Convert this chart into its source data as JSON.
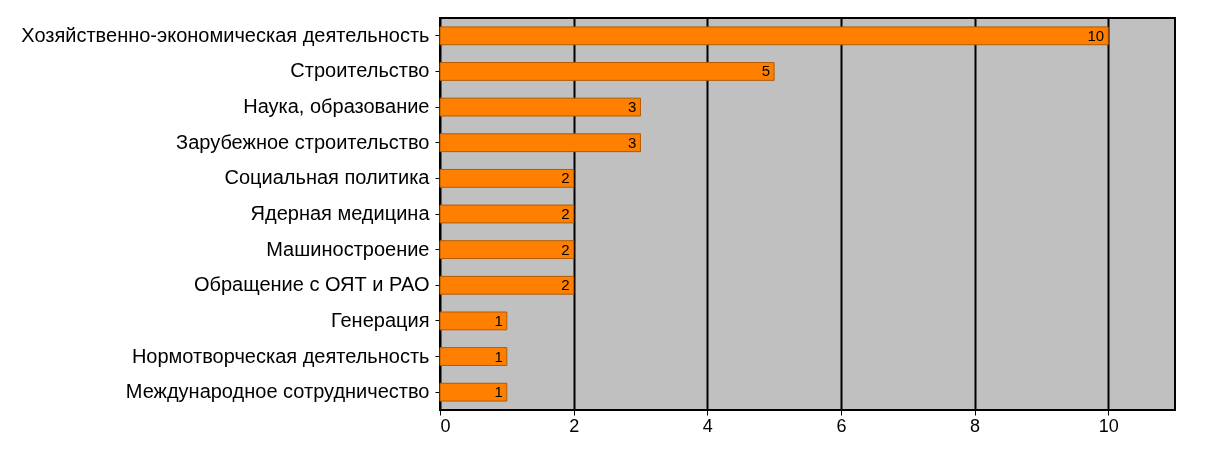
{
  "chart_data": {
    "type": "bar",
    "orientation": "horizontal",
    "categories": [
      "Хозяйственно-экономическая деятельность",
      "Строительство",
      "Наука, образование",
      "Зарубежное строительство",
      "Социальная политика",
      "Ядерная медицина",
      "Машиностроение",
      "Обращение с ОЯТ и РАО",
      "Генерация",
      "Нормотворческая деятельность",
      "Международное сотрудничество"
    ],
    "values": [
      10,
      5,
      3,
      3,
      2,
      2,
      2,
      2,
      1,
      1,
      1
    ],
    "color": "#ff8000",
    "xlim": [
      0,
      11
    ],
    "xticks": [
      0,
      2,
      4,
      6,
      8,
      10
    ],
    "grid": "x",
    "data_labels": true
  }
}
